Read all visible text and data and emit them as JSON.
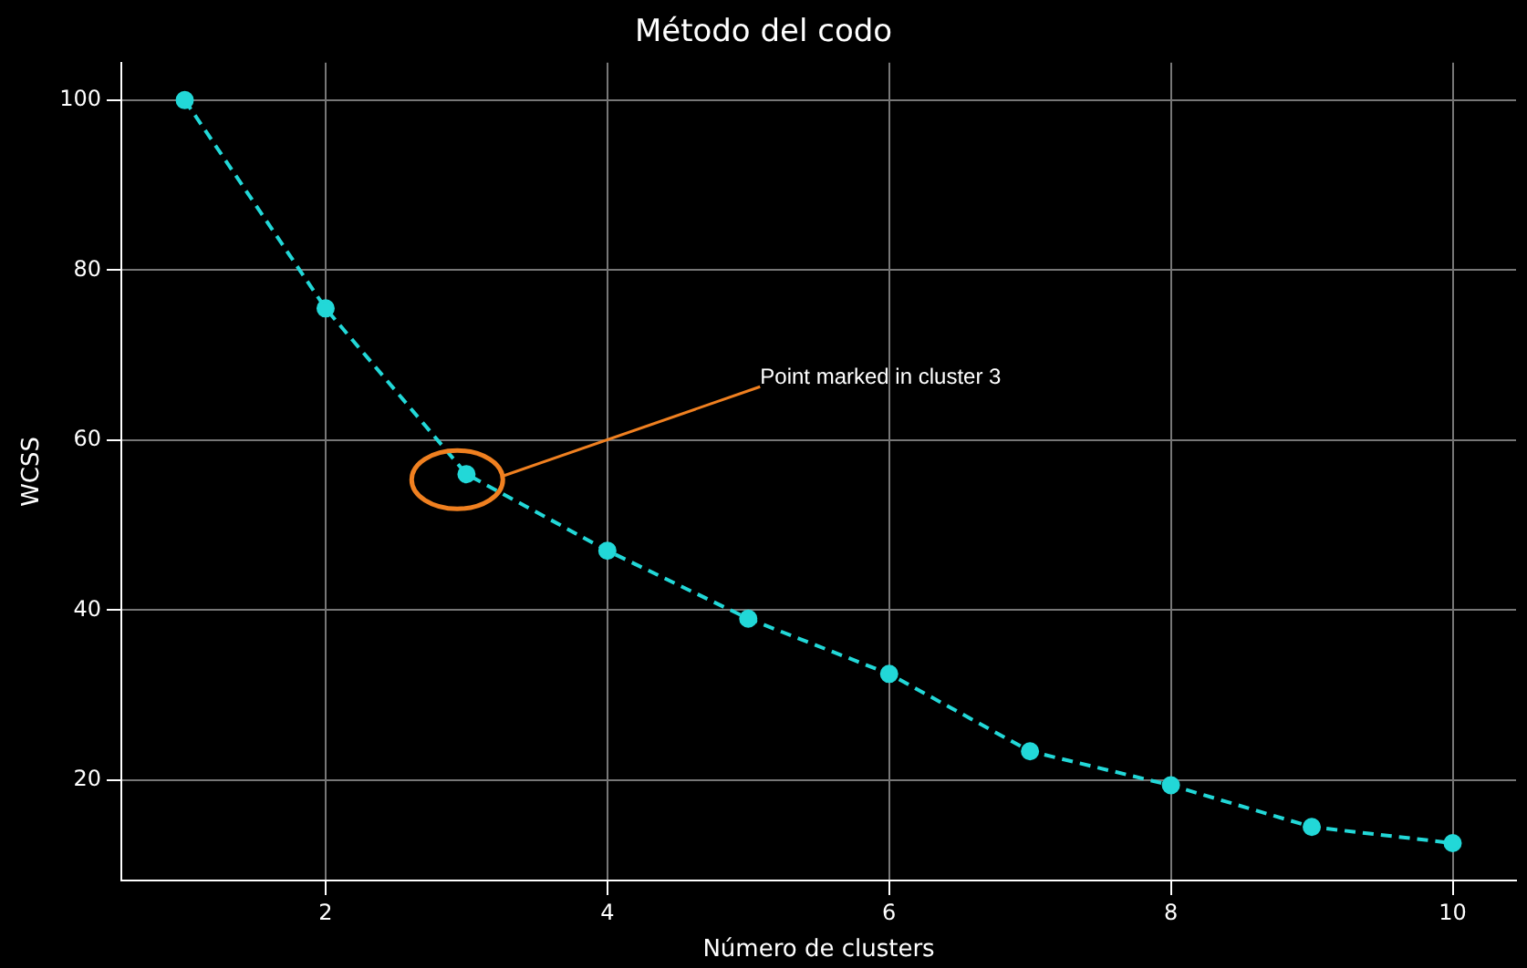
{
  "chart_data": {
    "type": "line",
    "title": "Método del codo",
    "xlabel": "Número de clusters",
    "ylabel": "WCSS",
    "x": [
      1,
      2,
      3,
      4,
      5,
      6,
      7,
      8,
      9,
      10
    ],
    "series": [
      {
        "color": "#22d8d8",
        "values": [
          100,
          75.5,
          56,
          47,
          39,
          32.5,
          23.4,
          19.4,
          14.5,
          12.6
        ]
      }
    ],
    "xlim": [
      0.55,
      10.45
    ],
    "ylim": [
      8.2,
      104.4
    ],
    "xticks": [
      2,
      4,
      6,
      8,
      10
    ],
    "yticks": [
      20,
      40,
      60,
      80,
      100
    ],
    "grid": true,
    "marker": "circle",
    "line_style": "dashed",
    "annotations": [
      "Point marked in cluster 3"
    ]
  }
}
